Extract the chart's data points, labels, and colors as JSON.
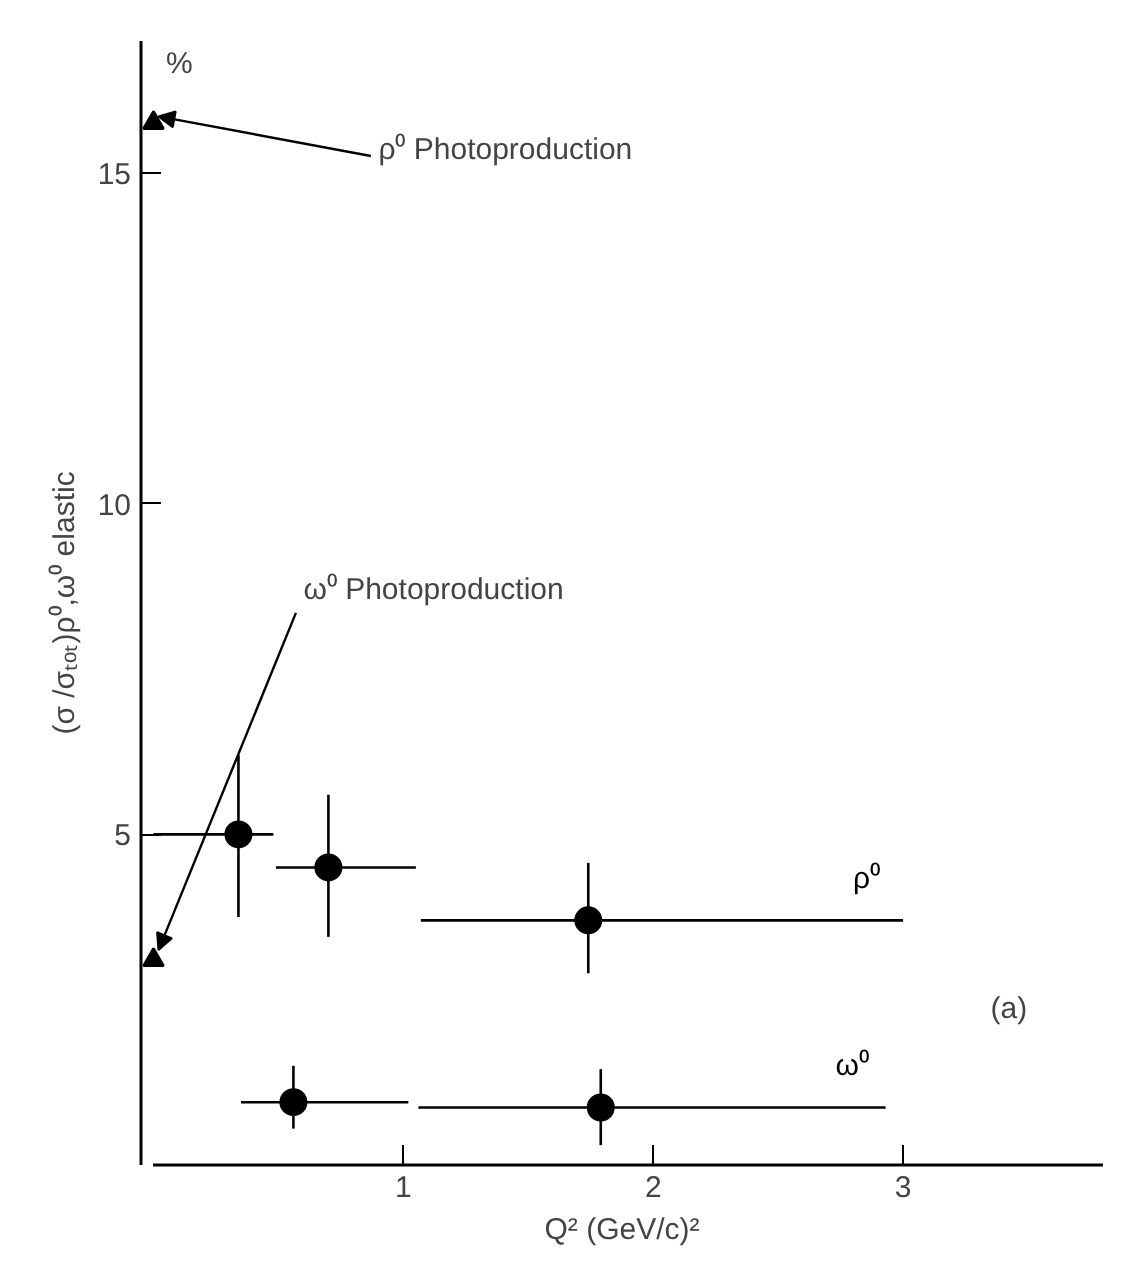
{
  "chart_data": {
    "type": "scatter",
    "xlabel": "Q² (GeV/c)²",
    "ylabel": "(σ /σₜₒₜ)ρ⁰,ω⁰ elastic",
    "xlim": [
      0,
      3.8
    ],
    "ylim": [
      0,
      17
    ],
    "xticks": [
      1,
      2,
      3
    ],
    "yticks": [
      5,
      10,
      15
    ],
    "grid": false,
    "legend": false,
    "marker": "circle",
    "series": [
      {
        "name": "ρ⁰",
        "color": "#000000",
        "x": [
          0.34,
          0.7,
          1.74
        ],
        "values": [
          5.0,
          4.5,
          3.7
        ],
        "errors": [
          [
            3.75,
            6.2
          ],
          [
            3.45,
            5.6
          ],
          [
            2.9,
            4.57
          ]
        ],
        "xerrors": [
          [
            0.0,
            0.48
          ],
          [
            0.49,
            1.05
          ],
          [
            1.07,
            3.0
          ]
        ]
      },
      {
        "name": "ω⁰",
        "color": "#000000",
        "x": [
          0.56,
          1.79
        ],
        "values": [
          0.95,
          0.87
        ],
        "errors": [
          [
            0.55,
            1.5
          ],
          [
            0.3,
            1.45
          ]
        ],
        "xerrors": [
          [
            0.35,
            1.02
          ],
          [
            1.06,
            2.93
          ]
        ]
      },
      {
        "color": "#000000",
        "marker": "triangle",
        "x": [
          0,
          0
        ],
        "values": [
          15.76,
          3.1
        ]
      }
    ],
    "annotations": [
      {
        "text": "ρ⁰ Photoproduction",
        "x": 0,
        "y": 15.76
      },
      {
        "text": "ω⁰ Photoproduction",
        "x": 0,
        "y": 3.1
      },
      "%",
      "(a)"
    ]
  }
}
